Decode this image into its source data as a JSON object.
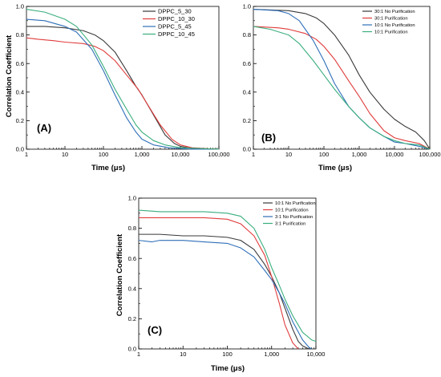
{
  "colors": {
    "black": "#3a3a3a",
    "red": "#e03c3c",
    "blue": "#2f6fb8",
    "green": "#3aae7e"
  },
  "chart_data": [
    {
      "panel": "(A)",
      "type": "line",
      "xscale": "log",
      "xlim": [
        1,
        100000
      ],
      "ylim": [
        0,
        1.0
      ],
      "xlabel": "Time (μs)",
      "ylabel": "Correlation Coefficient",
      "xticks": [
        1,
        10,
        100,
        1000,
        10000,
        100000
      ],
      "xticklabels": [
        "1",
        "10",
        "100",
        "1,000",
        "10,000",
        "100,000"
      ],
      "yticks": [
        0,
        0.2,
        0.4,
        0.6,
        0.8,
        1.0
      ],
      "yticklabels": [
        "0.0",
        "0.2",
        "0.4",
        "0.6",
        "0.8",
        "1.0"
      ],
      "legend": "top-right",
      "series": [
        {
          "name": "DPPC_5_30",
          "color": "black",
          "points": [
            [
              1,
              0.86
            ],
            [
              3,
              0.86
            ],
            [
              10,
              0.85
            ],
            [
              30,
              0.83
            ],
            [
              60,
              0.8
            ],
            [
              100,
              0.76
            ],
            [
              200,
              0.68
            ],
            [
              400,
              0.55
            ],
            [
              700,
              0.44
            ],
            [
              1000,
              0.38
            ],
            [
              2000,
              0.24
            ],
            [
              4000,
              0.1
            ],
            [
              7000,
              0.04
            ],
            [
              10000,
              0.02
            ],
            [
              20000,
              0.005
            ],
            [
              100000,
              0.0
            ]
          ]
        },
        {
          "name": "DPPC_10_30",
          "color": "red",
          "points": [
            [
              1,
              0.78
            ],
            [
              2,
              0.77
            ],
            [
              5,
              0.76
            ],
            [
              10,
              0.75
            ],
            [
              30,
              0.74
            ],
            [
              60,
              0.72
            ],
            [
              100,
              0.69
            ],
            [
              200,
              0.62
            ],
            [
              400,
              0.52
            ],
            [
              800,
              0.42
            ],
            [
              1500,
              0.3
            ],
            [
              3000,
              0.17
            ],
            [
              6000,
              0.07
            ],
            [
              10000,
              0.03
            ],
            [
              20000,
              0.01
            ],
            [
              100000,
              0.0
            ]
          ]
        },
        {
          "name": "DPPC_5_45",
          "color": "blue",
          "points": [
            [
              1,
              0.91
            ],
            [
              3,
              0.9
            ],
            [
              10,
              0.86
            ],
            [
              20,
              0.82
            ],
            [
              50,
              0.7
            ],
            [
              100,
              0.55
            ],
            [
              200,
              0.38
            ],
            [
              400,
              0.22
            ],
            [
              700,
              0.12
            ],
            [
              1000,
              0.07
            ],
            [
              2000,
              0.03
            ],
            [
              5000,
              0.01
            ],
            [
              20000,
              0.0
            ],
            [
              100000,
              0.0
            ]
          ]
        },
        {
          "name": "DPPC_10_45",
          "color": "green",
          "points": [
            [
              1,
              0.98
            ],
            [
              3,
              0.96
            ],
            [
              10,
              0.91
            ],
            [
              20,
              0.86
            ],
            [
              50,
              0.73
            ],
            [
              100,
              0.58
            ],
            [
              200,
              0.42
            ],
            [
              400,
              0.28
            ],
            [
              700,
              0.17
            ],
            [
              1000,
              0.12
            ],
            [
              2000,
              0.06
            ],
            [
              4000,
              0.03
            ],
            [
              10000,
              0.01
            ],
            [
              100000,
              0.0
            ]
          ]
        }
      ]
    },
    {
      "panel": "(B)",
      "type": "line",
      "xscale": "log",
      "xlim": [
        1,
        100000
      ],
      "ylim": [
        0,
        1.0
      ],
      "xlabel": "Time (μs)",
      "ylabel": "",
      "xticks": [
        1,
        10,
        100,
        1000,
        10000,
        100000
      ],
      "xticklabels": [
        "1",
        "10",
        "100",
        "1,000",
        "10,000",
        "100,000"
      ],
      "yticks": [
        0,
        0.2,
        0.4,
        0.6,
        0.8,
        1.0
      ],
      "yticklabels": [
        "0.0",
        "0.2",
        "0.4",
        "0.6",
        "0.8",
        "1.0"
      ],
      "legend": "top-right",
      "series": [
        {
          "name": "30:1 No Purification",
          "color": "black",
          "points": [
            [
              1,
              0.98
            ],
            [
              10,
              0.97
            ],
            [
              30,
              0.95
            ],
            [
              60,
              0.92
            ],
            [
              100,
              0.88
            ],
            [
              200,
              0.8
            ],
            [
              500,
              0.66
            ],
            [
              1000,
              0.52
            ],
            [
              2000,
              0.4
            ],
            [
              5000,
              0.28
            ],
            [
              10000,
              0.21
            ],
            [
              20000,
              0.16
            ],
            [
              40000,
              0.12
            ],
            [
              70000,
              0.06
            ],
            [
              100000,
              0.0
            ]
          ]
        },
        {
          "name": "30:1 Purification",
          "color": "red",
          "points": [
            [
              1,
              0.86
            ],
            [
              5,
              0.85
            ],
            [
              10,
              0.84
            ],
            [
              30,
              0.81
            ],
            [
              60,
              0.77
            ],
            [
              100,
              0.72
            ],
            [
              200,
              0.63
            ],
            [
              500,
              0.48
            ],
            [
              1000,
              0.37
            ],
            [
              2000,
              0.25
            ],
            [
              5000,
              0.13
            ],
            [
              10000,
              0.08
            ],
            [
              20000,
              0.06
            ],
            [
              50000,
              0.04
            ],
            [
              100000,
              0.0
            ]
          ]
        },
        {
          "name": "10:1 No Purification",
          "color": "blue",
          "points": [
            [
              1,
              0.98
            ],
            [
              5,
              0.97
            ],
            [
              10,
              0.95
            ],
            [
              20,
              0.9
            ],
            [
              50,
              0.76
            ],
            [
              100,
              0.62
            ],
            [
              200,
              0.46
            ],
            [
              500,
              0.3
            ],
            [
              1000,
              0.22
            ],
            [
              2000,
              0.15
            ],
            [
              5000,
              0.09
            ],
            [
              10000,
              0.05
            ],
            [
              20000,
              0.04
            ],
            [
              50000,
              0.02
            ],
            [
              100000,
              0.0
            ]
          ]
        },
        {
          "name": "10:1 Purification",
          "color": "green",
          "points": [
            [
              1,
              0.86
            ],
            [
              3,
              0.84
            ],
            [
              10,
              0.8
            ],
            [
              20,
              0.74
            ],
            [
              50,
              0.62
            ],
            [
              100,
              0.52
            ],
            [
              200,
              0.42
            ],
            [
              500,
              0.3
            ],
            [
              1000,
              0.22
            ],
            [
              2000,
              0.15
            ],
            [
              5000,
              0.09
            ],
            [
              10000,
              0.06
            ],
            [
              20000,
              0.04
            ],
            [
              50000,
              0.03
            ],
            [
              100000,
              0.0
            ]
          ]
        }
      ]
    },
    {
      "panel": "(C)",
      "type": "line",
      "xscale": "log",
      "xlim": [
        1,
        10000
      ],
      "ylim": [
        0,
        1.0
      ],
      "xlabel": "Time (μs)",
      "ylabel": "Correlation Coefficient",
      "xticks": [
        1,
        10,
        100,
        1000,
        10000
      ],
      "xticklabels": [
        "1",
        "10",
        "100",
        "1,000",
        "10,000"
      ],
      "yticks": [
        0,
        0.2,
        0.4,
        0.6,
        0.8,
        1.0
      ],
      "yticklabels": [
        "0.0",
        "0.2",
        "0.4",
        "0.6",
        "0.8",
        "1.0"
      ],
      "legend": "top-right",
      "series": [
        {
          "name": "10:1 No Purification",
          "color": "black",
          "points": [
            [
              1,
              0.76
            ],
            [
              3,
              0.76
            ],
            [
              10,
              0.75
            ],
            [
              30,
              0.75
            ],
            [
              100,
              0.74
            ],
            [
              200,
              0.72
            ],
            [
              400,
              0.66
            ],
            [
              700,
              0.56
            ],
            [
              1000,
              0.48
            ],
            [
              1500,
              0.37
            ],
            [
              2000,
              0.27
            ],
            [
              3000,
              0.13
            ],
            [
              4000,
              0.05
            ],
            [
              5000,
              0.02
            ],
            [
              7000,
              0.0
            ]
          ]
        },
        {
          "name": "10:1 Purification",
          "color": "red",
          "points": [
            [
              1,
              0.87
            ],
            [
              3,
              0.87
            ],
            [
              10,
              0.87
            ],
            [
              30,
              0.87
            ],
            [
              100,
              0.86
            ],
            [
              200,
              0.83
            ],
            [
              400,
              0.75
            ],
            [
              700,
              0.62
            ],
            [
              1000,
              0.48
            ],
            [
              1500,
              0.3
            ],
            [
              2000,
              0.16
            ],
            [
              3000,
              0.04
            ],
            [
              4000,
              0.0
            ]
          ]
        },
        {
          "name": "3:1 No Purification",
          "color": "blue",
          "points": [
            [
              1,
              0.72
            ],
            [
              2,
              0.71
            ],
            [
              3,
              0.72
            ],
            [
              10,
              0.72
            ],
            [
              30,
              0.71
            ],
            [
              100,
              0.7
            ],
            [
              200,
              0.67
            ],
            [
              400,
              0.61
            ],
            [
              700,
              0.52
            ],
            [
              1000,
              0.46
            ],
            [
              1500,
              0.37
            ],
            [
              2000,
              0.3
            ],
            [
              3000,
              0.18
            ],
            [
              5000,
              0.06
            ],
            [
              7000,
              0.01
            ],
            [
              8000,
              0.0
            ]
          ]
        },
        {
          "name": "3:1 Purification",
          "color": "green",
          "points": [
            [
              1,
              0.92
            ],
            [
              3,
              0.91
            ],
            [
              10,
              0.91
            ],
            [
              30,
              0.91
            ],
            [
              100,
              0.9
            ],
            [
              200,
              0.88
            ],
            [
              400,
              0.8
            ],
            [
              700,
              0.66
            ],
            [
              1000,
              0.54
            ],
            [
              1500,
              0.42
            ],
            [
              2000,
              0.33
            ],
            [
              3000,
              0.22
            ],
            [
              5000,
              0.11
            ],
            [
              8000,
              0.06
            ],
            [
              10000,
              0.05
            ]
          ]
        }
      ]
    }
  ]
}
